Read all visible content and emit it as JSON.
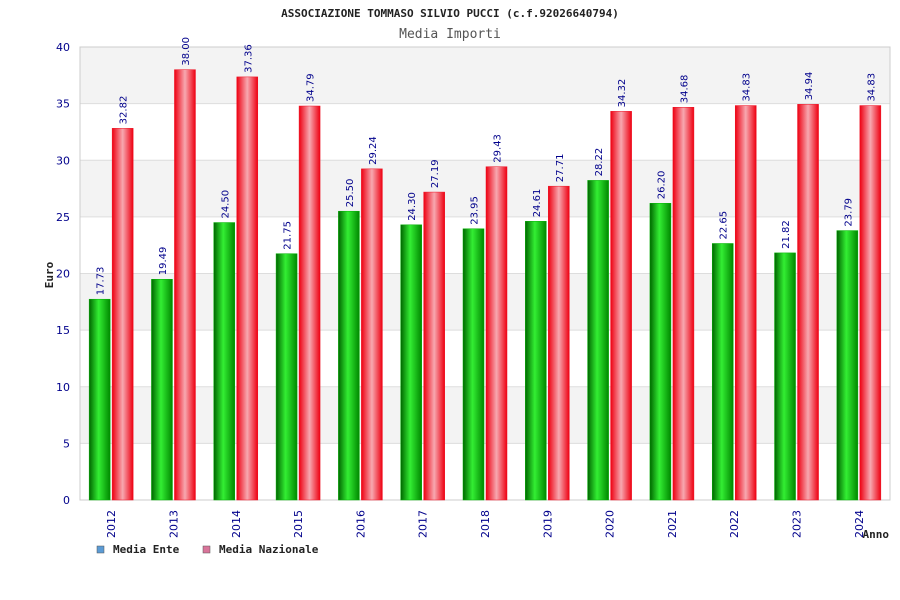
{
  "colors": {
    "ente": "#00b000",
    "nazionale": "#ee1122",
    "legend_ente": "#5b9bd5",
    "legend_nazionale": "#d9749a",
    "band": "#f3f3f3",
    "grid": "#dddddd",
    "axis_text": "#00008b"
  },
  "chart_data": {
    "type": "bar",
    "title": "ASSOCIAZIONE TOMMASO SILVIO PUCCI (c.f.92026640794)",
    "subtitle": "Media Importi",
    "xlabel": "Anno",
    "ylabel": "Euro",
    "ylim": [
      0,
      40
    ],
    "yticks": [
      "0",
      "5",
      "10",
      "15",
      "20",
      "25",
      "30",
      "35",
      "40"
    ],
    "categories": [
      "2012",
      "2013",
      "2014",
      "2015",
      "2016",
      "2017",
      "2018",
      "2019",
      "2020",
      "2021",
      "2022",
      "2023",
      "2024"
    ],
    "series": [
      {
        "name": "Media Ente",
        "values": [
          17.73,
          19.49,
          24.5,
          21.75,
          25.5,
          24.3,
          23.95,
          24.61,
          28.22,
          26.2,
          22.65,
          21.82,
          23.79
        ],
        "labels": [
          "17.73",
          "19.49",
          "24.50",
          "21.75",
          "25.50",
          "24.30",
          "23.95",
          "24.61",
          "28.22",
          "26.20",
          "22.65",
          "21.82",
          "23.79"
        ]
      },
      {
        "name": "Media Nazionale",
        "values": [
          32.82,
          38.0,
          37.36,
          34.79,
          29.24,
          27.19,
          29.43,
          27.71,
          34.32,
          34.68,
          34.83,
          34.94,
          34.83
        ],
        "labels": [
          "32.82",
          "38.00",
          "37.36",
          "34.79",
          "29.24",
          "27.19",
          "29.43",
          "27.71",
          "34.32",
          "34.68",
          "34.83",
          "34.94",
          "34.83"
        ]
      }
    ],
    "grid": true,
    "legend_position": "bottom-left"
  }
}
